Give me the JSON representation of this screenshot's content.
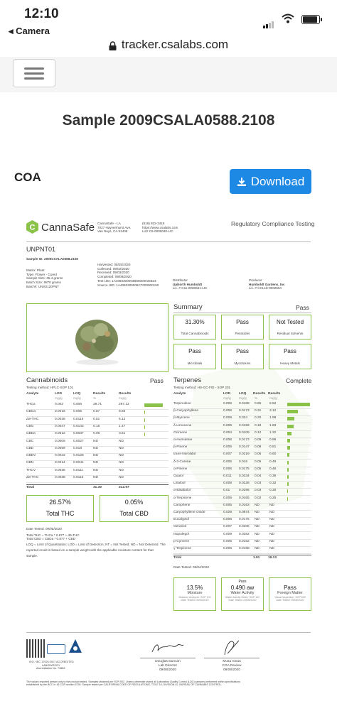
{
  "status_bar": {
    "time": "12:10",
    "back_app": "◂ Camera"
  },
  "browser": {
    "url": "tracker.csalabs.com"
  },
  "page": {
    "title": "Sample 2009CSALA0588.2108",
    "coa_label": "COA",
    "download_label": "Download"
  },
  "doc": {
    "brand": "CannaSafe",
    "lab_address": [
      "CannaSafe - LA",
      "7027 Hayvenhurst Ave.",
      "Van Nuys, CA 91406"
    ],
    "lab_contact": [
      "(818) 922-2416",
      "https://www.csalabs.com",
      "Lic# C8-0000040-LIC"
    ],
    "header_right": "Regulatory Compliance Testing",
    "sample_name": "UNPNT01",
    "sample_id": "Sample ID: 2009CSALA0588.2108",
    "left_meta": [
      "Matrix: Plant",
      "Type: Flower - Cured",
      "Sample Size: 35.4 grams",
      "Batch Size: 9870 grams",
      "Batch#: UNX0120PNT"
    ],
    "mid_meta": [
      "Harvested: 08/25/2020",
      "Collected: 09/02/2020",
      "Received: 09/03/2020",
      "Completed: 09/08/2020",
      "Test UID: 1A4060300003B66000034823",
      "Source UID: 1A4060300008C7000000150"
    ],
    "distributor_label": "Distributor",
    "distributor": [
      "UpNorth Humboldt",
      "Lic. # C11-0000661-LIC"
    ],
    "producer_label": "Producer",
    "producer": [
      "Humboldt Gardens, Inc",
      "Lic. # CCL19-0002654"
    ],
    "summary": {
      "title": "Summary",
      "status": "Pass",
      "cards": [
        {
          "value": "31.30%",
          "label": "Total Cannabinoids"
        },
        {
          "value": "Pass",
          "label": "Pesticides"
        },
        {
          "value": "Not Tested",
          "label": "Residual Solvents"
        },
        {
          "value": "Pass",
          "label": "Microbials"
        },
        {
          "value": "Pass",
          "label": "Mycotoxins"
        },
        {
          "value": "Pass",
          "label": "Heavy Metals"
        }
      ]
    },
    "cannabinoids": {
      "title": "Cannabinoids",
      "status": "Pass",
      "method": "Testing method: HPLC-SOP 101",
      "headers": [
        "Analyte",
        "LOD",
        "LOQ",
        "Results",
        "Results"
      ],
      "units": [
        "",
        "mg/g",
        "mg/g",
        "%",
        "mg/g"
      ],
      "rows": [
        [
          "THCa",
          "0.002",
          "0.006",
          "29.71",
          "297.12"
        ],
        [
          "CBGa",
          "0.0016",
          "0.005",
          "0.87",
          "8.65"
        ],
        [
          "Δ9-THC",
          "0.0038",
          "0.0115",
          "0.51",
          "5.12"
        ],
        [
          "CBG",
          "0.0047",
          "0.0143",
          "0.15",
          "1.47"
        ],
        [
          "CBDa",
          "0.0012",
          "0.0037",
          "0.06",
          "0.61"
        ],
        [
          "CBC",
          "0.0009",
          "0.0027",
          "ND",
          "ND"
        ],
        [
          "CBD",
          "0.0059",
          "0.018",
          "ND",
          "ND"
        ],
        [
          "CBDV",
          "0.0042",
          "0.0126",
          "ND",
          "ND"
        ],
        [
          "CBN",
          "0.0014",
          "0.0041",
          "ND",
          "ND"
        ],
        [
          "THCV",
          "0.0036",
          "0.0111",
          "ND",
          "ND"
        ],
        [
          "Δ8-THC",
          "0.0038",
          "0.0115",
          "ND",
          "ND"
        ]
      ],
      "total": [
        "Total",
        "",
        "",
        "31.30",
        "312.97"
      ],
      "total_thc_value": "26.57%",
      "total_thc_label": "Total THC",
      "total_cbd_value": "0.05%",
      "total_cbd_label": "Total CBD",
      "notes": [
        "Date Tested: 09/05/2020",
        "Total THC = THCa * 0.877 + d9-THC",
        "Total CBD = CBDa * 0.877 + CBD",
        "LOQ = Limit of Quantitation; LOD = Limit of Detection; NT = Not Tested; ND = Not Detected. The",
        "reported result is based on a sample weight with the applicable moisture content for that",
        "sample."
      ]
    },
    "terpenes": {
      "title": "Terpenes",
      "status": "Complete",
      "method": "Testing method: HS-GC-FID - SOP 201",
      "headers": [
        "Analyte",
        "LOD",
        "LOQ",
        "Results",
        "Results"
      ],
      "units": [
        "",
        "mg/g",
        "mg/g",
        "%",
        "mg/g"
      ],
      "rows": [
        [
          "Terpinolene",
          "0.006",
          "0.0168",
          "0.65",
          "6.52"
        ],
        [
          "β-Caryophyllene",
          "0.006",
          "0.0173",
          "0.31",
          "3.12"
        ],
        [
          "β-Myrcene",
          "0.008",
          "0.024",
          "0.20",
          "1.98"
        ],
        [
          "δ-Limonene",
          "0.005",
          "0.0159",
          "0.18",
          "1.83"
        ],
        [
          "Ocimene",
          "0.004",
          "0.0109",
          "0.12",
          "1.22"
        ],
        [
          "α-Humulene",
          "0.006",
          "0.0173",
          "0.09",
          "0.86"
        ],
        [
          "β-Pinene",
          "0.005",
          "0.0147",
          "0.08",
          "0.81"
        ],
        [
          "trans-Nerolidol",
          "0.007",
          "0.0219",
          "0.06",
          "0.60"
        ],
        [
          "δ-3-Carene",
          "0.005",
          "0.016",
          "0.05",
          "0.49"
        ],
        [
          "α-Pinene",
          "0.006",
          "0.0175",
          "0.05",
          "0.46"
        ],
        [
          "Guaiol",
          "0.011",
          "0.0334",
          "0.04",
          "0.36"
        ],
        [
          "Linalool",
          "0.008",
          "0.0228",
          "0.03",
          "0.32"
        ],
        [
          "α-Bisabolol",
          "0.01",
          "0.0295",
          "0.03",
          "0.30"
        ],
        [
          "α-Terpinene",
          "0.005",
          "0.0165",
          "0.02",
          "0.25"
        ],
        [
          "Camphene",
          "0.005",
          "0.0163",
          "ND",
          "ND"
        ],
        [
          "Caryophyllene Oxide",
          "0.029",
          "0.0874",
          "ND",
          "ND"
        ],
        [
          "Eucalyptol",
          "0.006",
          "0.0175",
          "ND",
          "ND"
        ],
        [
          "Geraniol",
          "0.007",
          "0.0205",
          "ND",
          "ND"
        ],
        [
          "Isopulegol",
          "0.009",
          "0.0282",
          "ND",
          "ND"
        ],
        [
          "p-Cymene",
          "0.005",
          "0.0162",
          "ND",
          "ND"
        ],
        [
          "γ-Terpinene",
          "0.006",
          "0.0168",
          "ND",
          "ND"
        ]
      ],
      "total": [
        "Total",
        "",
        "",
        "1.91",
        "19.13"
      ],
      "date": "Date Tested: 09/04/2020"
    },
    "bottom_cards": [
      {
        "top": "",
        "value": "13.5%",
        "label": "Moisture",
        "sub": "Moisture Analyzer: SOP 103",
        "date": "Date Tested: 09/06/2020"
      },
      {
        "top": "Pass",
        "value": "0.490 aw",
        "label": "Water Activity",
        "sub": "Water Activity Meter: SOP 102",
        "date": "Date Tested: 09/06/2020"
      },
      {
        "top": "",
        "value": "Pass",
        "label": "Foreign Matter",
        "sub": "Visual Inspection: SOP 600",
        "date": "Date Tested: 09/06/2020"
      }
    ],
    "accreditation": [
      "ISO / IEC 17025:2017 ACCREDITED",
      "LABORATORY",
      "Accreditation No. 73653"
    ],
    "signers": [
      {
        "name": "Douglas Duncan",
        "role": "Lab Director",
        "date": "09/08/2020"
      },
      {
        "name": "Musa Aman",
        "role": "COA Review",
        "date": "09/08/2020"
      }
    ],
    "disclaimer": [
      "The values reported pertain only to the product tested. Samples obtained per SOP-002. Unless otherwise stated all Laboratory Quality Control (LQC) samples performed within specifications",
      "established by the BCC in 16 CCR section 5730. Sample tested per CALIFORNIA CODE OF REGULATIONS, TITLE 16, DIVISION 42. BUREAU OF CANNABIS CONTROL."
    ]
  },
  "colors": {
    "accent_green": "#8bc34a",
    "button_blue": "#1e88e5"
  }
}
